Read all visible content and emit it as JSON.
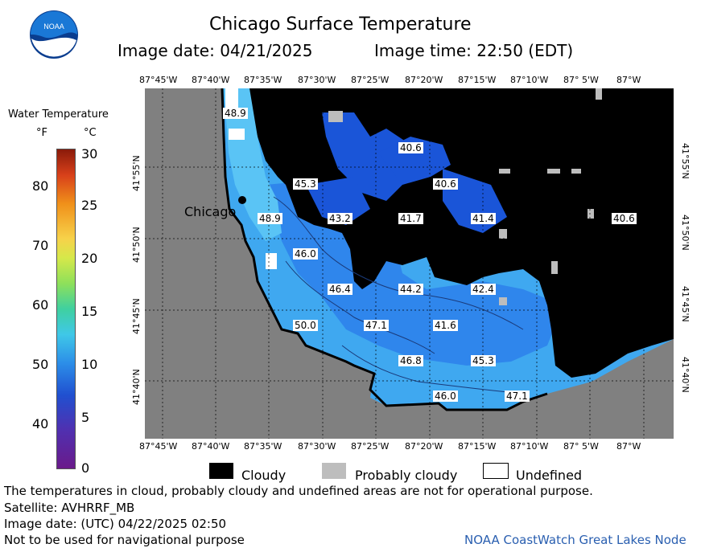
{
  "header": {
    "title": "Chicago Surface Temperature",
    "image_date": "Image date: 04/21/2025",
    "image_time": "Image time: 22:50 (EDT)"
  },
  "logo": {
    "text": "NOAA"
  },
  "colors": {
    "land": "#808080",
    "cloud": "#000000",
    "water_light": "#3fa8f0",
    "water_dark": "#1e6fe0",
    "water_deep": "#1a55d8",
    "probably_cloudy": "#bdbdbd",
    "undefined": "#ffffff"
  },
  "map": {
    "top_lon_ticks": [
      "87°45'W",
      "87°40'W",
      "87°35'W",
      "87°30'W",
      "87°25'W",
      "87°20'W",
      "87°15'W",
      "87°10'W",
      "87° 5'W",
      "87°W"
    ],
    "bottom_lon_ticks": [
      "87°45'W",
      "87°40'W",
      "87°35'W",
      "87°30'W",
      "87°25'W",
      "87°20'W",
      "87°15'W",
      "87°10'W",
      "87° 5'W",
      "87°W"
    ],
    "lat_ticks": [
      "41°55'N",
      "41°50'N",
      "41°45'N",
      "41°40'N"
    ],
    "city": "Chicago",
    "temperature_labels": [
      "48.9",
      "40.6",
      "45.3",
      "40.6",
      "48.9",
      "43.2",
      "41.7",
      "41.4",
      "40.6",
      "46.0",
      "46.4",
      "44.2",
      "42.4",
      "50.0",
      "47.1",
      "41.6",
      "46.8",
      "45.3",
      "46.0",
      "47.1"
    ]
  },
  "colorbar": {
    "title": "Water Temperature",
    "unit_f": "°F",
    "unit_c": "°C",
    "f_ticks": [
      "80",
      "70",
      "60",
      "50",
      "40"
    ],
    "c_ticks": [
      "30",
      "25",
      "20",
      "15",
      "10",
      "5",
      "0"
    ]
  },
  "key": {
    "cloudy": "Cloudy",
    "probably_cloudy": "Probably cloudy",
    "undefined": "Undefined"
  },
  "footer": {
    "note": "The temperatures in cloud, probably cloudy and undefined areas are not for operational purpose.",
    "satellite": "Satellite: AVHRRF_MB",
    "utc_date": "Image date: (UTC) 04/22/2025  02:50",
    "nav": "Not to be used for navigational purpose",
    "source": "NOAA CoastWatch Great Lakes Node"
  }
}
